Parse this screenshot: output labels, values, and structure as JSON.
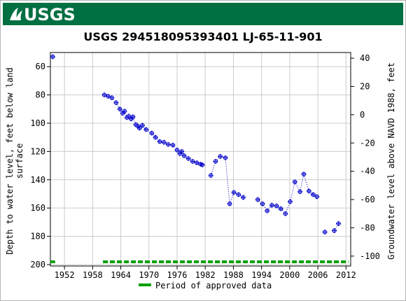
{
  "header": {
    "logo_text": "USGS",
    "brand_color": "#006f41"
  },
  "chart_data": {
    "type": "scatter",
    "title": "USGS 294518095393401 LJ-65-11-901",
    "ylabel_left_line1": "Depth to water level, feet below land",
    "ylabel_left_line2": "surface",
    "ylabel_right": "Groundwater level above NAVD 1988, feet",
    "xlim": [
      1949,
      2013
    ],
    "ylim_left": [
      201,
      50
    ],
    "ylim_right": [
      -107,
      44
    ],
    "x_ticks": [
      1952,
      1958,
      1964,
      1970,
      1976,
      1982,
      1988,
      1994,
      2000,
      2006,
      2012
    ],
    "y_ticks_left": [
      60,
      80,
      100,
      120,
      140,
      160,
      180,
      200
    ],
    "y_ticks_right": [
      40,
      20,
      0,
      -20,
      -40,
      -60,
      -80,
      -100
    ],
    "grid": true,
    "point_color": "#0000cc",
    "approved_color": "#00a000",
    "series": [
      {
        "values": [
          [
            1949.5,
            53
          ],
          [
            1960.5,
            80
          ],
          [
            1961.3,
            81
          ],
          [
            1962.1,
            82
          ],
          [
            1963.0,
            85.5
          ],
          [
            1963.8,
            90
          ],
          [
            1964.4,
            93
          ],
          [
            1964.8,
            91.5
          ],
          [
            1965.3,
            96
          ],
          [
            1965.7,
            95
          ],
          [
            1966.2,
            97
          ],
          [
            1966.6,
            95.5
          ],
          [
            1967.2,
            101
          ],
          [
            1967.6,
            102
          ],
          [
            1968.0,
            103.5
          ],
          [
            1968.6,
            101.5
          ],
          [
            1969.4,
            104.5
          ],
          [
            1970.6,
            107
          ],
          [
            1971.4,
            110
          ],
          [
            1972.3,
            113
          ],
          [
            1973.2,
            113.5
          ],
          [
            1974.1,
            115
          ],
          [
            1975.1,
            115.5
          ],
          [
            1976.0,
            119
          ],
          [
            1976.6,
            121.5
          ],
          [
            1977.0,
            120
          ],
          [
            1977.5,
            123
          ],
          [
            1978.4,
            125
          ],
          [
            1979.3,
            127
          ],
          [
            1980.2,
            128
          ],
          [
            1981.0,
            129
          ],
          [
            1981.4,
            129.5
          ],
          [
            1983.2,
            137
          ],
          [
            1984.2,
            127
          ],
          [
            1985.2,
            123.5
          ],
          [
            1986.3,
            124.5
          ],
          [
            1987.2,
            157
          ],
          [
            1988.1,
            149
          ],
          [
            1989.1,
            150.5
          ],
          [
            1990.1,
            152.5
          ],
          [
            1993.2,
            154
          ],
          [
            1994.2,
            157
          ],
          [
            1995.2,
            162
          ],
          [
            1996.2,
            158
          ],
          [
            1997.2,
            158.5
          ],
          [
            1998.1,
            160.5
          ],
          [
            1999.1,
            164
          ],
          [
            2000.1,
            155.5
          ],
          [
            2001.1,
            141.5
          ],
          [
            2002.2,
            148.5
          ],
          [
            2003.0,
            136
          ],
          [
            2004.1,
            148
          ],
          [
            2005.0,
            150.5
          ],
          [
            2005.8,
            152
          ],
          [
            2007.5,
            177
          ],
          [
            2009.5,
            176
          ],
          [
            2010.4,
            171
          ]
        ]
      }
    ],
    "approved_periods": [
      [
        1949,
        1950
      ],
      [
        1960.2,
        2012.5
      ]
    ],
    "legend_label": "Period of approved data",
    "legend_position": "bottom-center"
  }
}
